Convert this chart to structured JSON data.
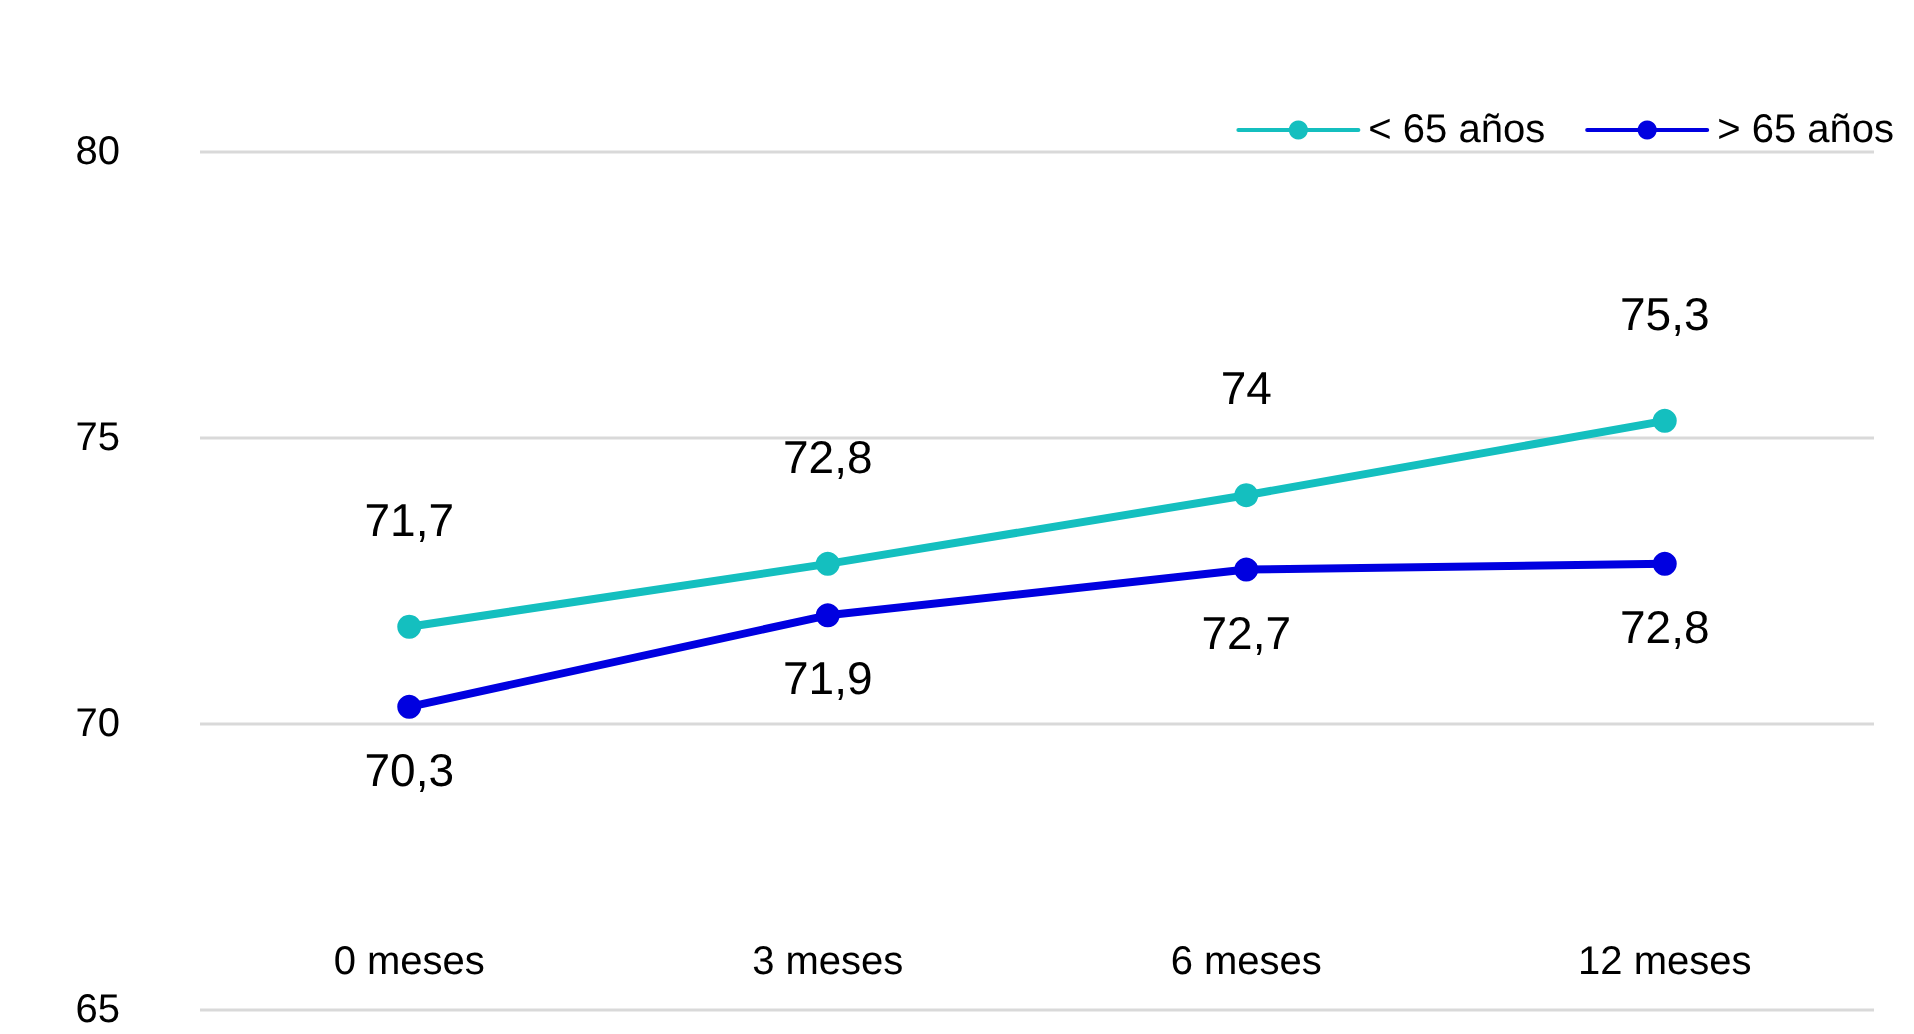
{
  "chart_data": {
    "type": "line",
    "categories": [
      "0 meses",
      "3 meses",
      "6 meses",
      "12 meses"
    ],
    "series": [
      {
        "name": "< 65 años",
        "color": "#14bfbf",
        "values": [
          71.7,
          72.8,
          74,
          75.3
        ],
        "value_labels": [
          "71,7",
          "72,8",
          "74",
          "75,3"
        ]
      },
      {
        "name": "> 65 años",
        "color": "#0000e0",
        "values": [
          70.3,
          71.9,
          72.7,
          72.8
        ],
        "value_labels": [
          "70,3",
          "71,9",
          "72,7",
          "72,8"
        ]
      }
    ],
    "ylim": [
      65,
      80
    ],
    "yticks": [
      65,
      70,
      75,
      80
    ],
    "grid": "y",
    "legend": "top right",
    "marker": "circle",
    "line_style": "solid"
  }
}
